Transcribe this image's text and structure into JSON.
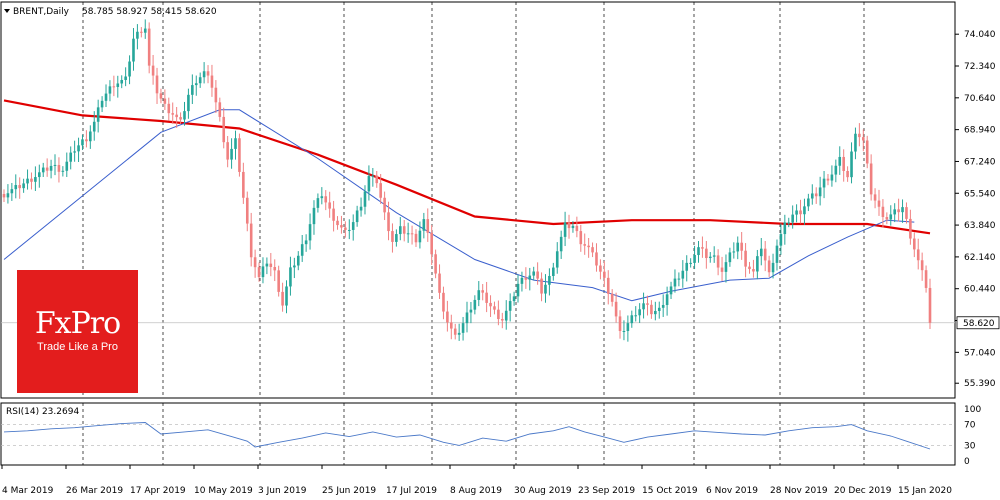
{
  "header": {
    "symbol": "BRENT,Daily",
    "ohlc": "58.785 58.927 58.415 58.620"
  },
  "logo": {
    "brand": "FxPro",
    "tagline": "Trade Like a Pro"
  },
  "rsi_header": "RSI(14) 23.2694",
  "last_price_label": "58.620",
  "colors": {
    "bull": "#26a69a",
    "bear": "#f08080",
    "ma200": "#e00000",
    "ma50": "#3a5fcd",
    "rsi": "#4a78c8",
    "logo": "#e31d1d"
  },
  "chart_data": [
    {
      "type": "candlestick",
      "title": "BRENT,Daily",
      "x_tick_labels": [
        "4 Mar 2019",
        "26 Mar 2019",
        "17 Apr 2019",
        "10 May 2019",
        "3 Jun 2019",
        "25 Jun 2019",
        "17 Jul 2019",
        "8 Aug 2019",
        "30 Aug 2019",
        "23 Sep 2019",
        "15 Oct 2019",
        "6 Nov 2019",
        "28 Nov 2019",
        "20 Dec 2019",
        "15 Jan 2020"
      ],
      "y_tick_labels": [
        "74.040",
        "72.340",
        "70.640",
        "68.940",
        "67.240",
        "65.540",
        "63.840",
        "62.140",
        "60.440",
        "58.740",
        "57.040",
        "55.390"
      ],
      "ylim": [
        54.6,
        75.6
      ],
      "close_series": [
        {
          "x": 0,
          "y": 65.5
        },
        {
          "x": 3,
          "y": 65.8
        },
        {
          "x": 6,
          "y": 66.2
        },
        {
          "x": 9,
          "y": 66.6
        },
        {
          "x": 12,
          "y": 67.0
        },
        {
          "x": 15,
          "y": 66.8
        },
        {
          "x": 18,
          "y": 67.9
        },
        {
          "x": 21,
          "y": 68.5
        },
        {
          "x": 23,
          "y": 69.3
        },
        {
          "x": 25,
          "y": 70.6
        },
        {
          "x": 28,
          "y": 71.4
        },
        {
          "x": 31,
          "y": 71.6
        },
        {
          "x": 33,
          "y": 73.8
        },
        {
          "x": 35,
          "y": 74.3
        },
        {
          "x": 36,
          "y": 74.4
        },
        {
          "x": 37,
          "y": 72.3
        },
        {
          "x": 39,
          "y": 71.0
        },
        {
          "x": 41,
          "y": 70.2
        },
        {
          "x": 43,
          "y": 69.8
        },
        {
          "x": 45,
          "y": 69.3
        },
        {
          "x": 47,
          "y": 70.8
        },
        {
          "x": 49,
          "y": 71.6
        },
        {
          "x": 51,
          "y": 72.0
        },
        {
          "x": 53,
          "y": 71.3
        },
        {
          "x": 55,
          "y": 69.5
        },
        {
          "x": 57,
          "y": 67.4
        },
        {
          "x": 59,
          "y": 68.3
        },
        {
          "x": 61,
          "y": 65.3
        },
        {
          "x": 63,
          "y": 62.3
        },
        {
          "x": 65,
          "y": 61.0
        },
        {
          "x": 67,
          "y": 61.9
        },
        {
          "x": 69,
          "y": 61.3
        },
        {
          "x": 71,
          "y": 59.6
        },
        {
          "x": 73,
          "y": 61.4
        },
        {
          "x": 75,
          "y": 62.2
        },
        {
          "x": 77,
          "y": 63.2
        },
        {
          "x": 79,
          "y": 64.7
        },
        {
          "x": 81,
          "y": 65.5
        },
        {
          "x": 83,
          "y": 64.6
        },
        {
          "x": 85,
          "y": 63.9
        },
        {
          "x": 87,
          "y": 63.4
        },
        {
          "x": 89,
          "y": 64.0
        },
        {
          "x": 91,
          "y": 65.0
        },
        {
          "x": 93,
          "y": 66.4
        },
        {
          "x": 95,
          "y": 66.2
        },
        {
          "x": 97,
          "y": 64.4
        },
        {
          "x": 99,
          "y": 63.0
        },
        {
          "x": 101,
          "y": 63.6
        },
        {
          "x": 103,
          "y": 63.4
        },
        {
          "x": 105,
          "y": 63.1
        },
        {
          "x": 107,
          "y": 64.1
        },
        {
          "x": 109,
          "y": 62.4
        },
        {
          "x": 111,
          "y": 60.1
        },
        {
          "x": 113,
          "y": 58.7
        },
        {
          "x": 115,
          "y": 57.8
        },
        {
          "x": 117,
          "y": 58.6
        },
        {
          "x": 119,
          "y": 59.5
        },
        {
          "x": 121,
          "y": 60.3
        },
        {
          "x": 123,
          "y": 59.8
        },
        {
          "x": 125,
          "y": 59.2
        },
        {
          "x": 127,
          "y": 58.8
        },
        {
          "x": 129,
          "y": 59.6
        },
        {
          "x": 131,
          "y": 60.7
        },
        {
          "x": 133,
          "y": 61.1
        },
        {
          "x": 135,
          "y": 61.3
        },
        {
          "x": 137,
          "y": 60.3
        },
        {
          "x": 139,
          "y": 61.0
        },
        {
          "x": 141,
          "y": 62.5
        },
        {
          "x": 143,
          "y": 63.8
        },
        {
          "x": 145,
          "y": 63.8
        },
        {
          "x": 147,
          "y": 63.0
        },
        {
          "x": 149,
          "y": 62.6
        },
        {
          "x": 151,
          "y": 61.8
        },
        {
          "x": 153,
          "y": 60.9
        },
        {
          "x": 155,
          "y": 59.8
        },
        {
          "x": 157,
          "y": 58.0
        },
        {
          "x": 159,
          "y": 58.6
        },
        {
          "x": 161,
          "y": 59.2
        },
        {
          "x": 163,
          "y": 59.6
        },
        {
          "x": 165,
          "y": 59.2
        },
        {
          "x": 167,
          "y": 59.3
        },
        {
          "x": 169,
          "y": 60.2
        },
        {
          "x": 171,
          "y": 60.8
        },
        {
          "x": 173,
          "y": 61.4
        },
        {
          "x": 175,
          "y": 62.0
        },
        {
          "x": 177,
          "y": 62.6
        },
        {
          "x": 179,
          "y": 62.2
        },
        {
          "x": 181,
          "y": 62.1
        },
        {
          "x": 183,
          "y": 61.4
        },
        {
          "x": 185,
          "y": 62.2
        },
        {
          "x": 187,
          "y": 62.9
        },
        {
          "x": 189,
          "y": 61.8
        },
        {
          "x": 191,
          "y": 61.3
        },
        {
          "x": 193,
          "y": 62.7
        },
        {
          "x": 195,
          "y": 61.2
        },
        {
          "x": 197,
          "y": 62.8
        },
        {
          "x": 199,
          "y": 63.8
        },
        {
          "x": 201,
          "y": 64.4
        },
        {
          "x": 203,
          "y": 64.6
        },
        {
          "x": 205,
          "y": 65.2
        },
        {
          "x": 207,
          "y": 65.5
        },
        {
          "x": 209,
          "y": 66.2
        },
        {
          "x": 211,
          "y": 66.6
        },
        {
          "x": 213,
          "y": 67.3
        },
        {
          "x": 215,
          "y": 66.4
        },
        {
          "x": 217,
          "y": 68.9
        },
        {
          "x": 219,
          "y": 68.3
        },
        {
          "x": 221,
          "y": 65.6
        },
        {
          "x": 223,
          "y": 64.7
        },
        {
          "x": 225,
          "y": 64.2
        },
        {
          "x": 227,
          "y": 64.5
        },
        {
          "x": 229,
          "y": 64.8
        },
        {
          "x": 231,
          "y": 63.3
        },
        {
          "x": 233,
          "y": 61.9
        },
        {
          "x": 235,
          "y": 60.6
        },
        {
          "x": 236,
          "y": 58.62
        }
      ],
      "ma200": [
        {
          "x": 0,
          "y": 70.5
        },
        {
          "x": 20,
          "y": 69.7
        },
        {
          "x": 40,
          "y": 69.4
        },
        {
          "x": 60,
          "y": 69.0
        },
        {
          "x": 80,
          "y": 67.6
        },
        {
          "x": 100,
          "y": 66.0
        },
        {
          "x": 120,
          "y": 64.3
        },
        {
          "x": 140,
          "y": 63.9
        },
        {
          "x": 160,
          "y": 64.1
        },
        {
          "x": 180,
          "y": 64.1
        },
        {
          "x": 200,
          "y": 63.9
        },
        {
          "x": 220,
          "y": 63.9
        },
        {
          "x": 236,
          "y": 63.4
        }
      ],
      "ma50": [
        {
          "x": 0,
          "y": 62.0
        },
        {
          "x": 20,
          "y": 65.4
        },
        {
          "x": 40,
          "y": 68.8
        },
        {
          "x": 55,
          "y": 70.0
        },
        {
          "x": 60,
          "y": 70.0
        },
        {
          "x": 80,
          "y": 67.4
        },
        {
          "x": 100,
          "y": 64.5
        },
        {
          "x": 120,
          "y": 62.0
        },
        {
          "x": 135,
          "y": 60.9
        },
        {
          "x": 150,
          "y": 60.5
        },
        {
          "x": 160,
          "y": 59.8
        },
        {
          "x": 170,
          "y": 60.3
        },
        {
          "x": 185,
          "y": 60.9
        },
        {
          "x": 195,
          "y": 61.0
        },
        {
          "x": 205,
          "y": 62.2
        },
        {
          "x": 215,
          "y": 63.2
        },
        {
          "x": 225,
          "y": 64.1
        },
        {
          "x": 232,
          "y": 64.0
        }
      ]
    },
    {
      "type": "line",
      "title": "RSI(14) 23.2694",
      "y_tick_labels": [
        "100",
        "70",
        "30",
        "0"
      ],
      "levels": [
        70,
        30
      ],
      "ylim": [
        0,
        100
      ],
      "values": [
        {
          "x": 0,
          "y": 56
        },
        {
          "x": 6,
          "y": 58
        },
        {
          "x": 12,
          "y": 62
        },
        {
          "x": 18,
          "y": 64
        },
        {
          "x": 24,
          "y": 68
        },
        {
          "x": 30,
          "y": 72
        },
        {
          "x": 36,
          "y": 74
        },
        {
          "x": 40,
          "y": 52
        },
        {
          "x": 46,
          "y": 56
        },
        {
          "x": 52,
          "y": 60
        },
        {
          "x": 58,
          "y": 47
        },
        {
          "x": 62,
          "y": 38
        },
        {
          "x": 64,
          "y": 27
        },
        {
          "x": 70,
          "y": 36
        },
        {
          "x": 76,
          "y": 44
        },
        {
          "x": 82,
          "y": 54
        },
        {
          "x": 88,
          "y": 47
        },
        {
          "x": 94,
          "y": 56
        },
        {
          "x": 100,
          "y": 46
        },
        {
          "x": 106,
          "y": 50
        },
        {
          "x": 112,
          "y": 36
        },
        {
          "x": 116,
          "y": 30
        },
        {
          "x": 122,
          "y": 44
        },
        {
          "x": 128,
          "y": 38
        },
        {
          "x": 134,
          "y": 52
        },
        {
          "x": 140,
          "y": 58
        },
        {
          "x": 144,
          "y": 66
        },
        {
          "x": 148,
          "y": 56
        },
        {
          "x": 154,
          "y": 44
        },
        {
          "x": 158,
          "y": 36
        },
        {
          "x": 164,
          "y": 46
        },
        {
          "x": 170,
          "y": 52
        },
        {
          "x": 176,
          "y": 58
        },
        {
          "x": 182,
          "y": 55
        },
        {
          "x": 188,
          "y": 52
        },
        {
          "x": 194,
          "y": 50
        },
        {
          "x": 200,
          "y": 58
        },
        {
          "x": 206,
          "y": 64
        },
        {
          "x": 212,
          "y": 66
        },
        {
          "x": 216,
          "y": 70
        },
        {
          "x": 220,
          "y": 58
        },
        {
          "x": 226,
          "y": 48
        },
        {
          "x": 230,
          "y": 38
        },
        {
          "x": 236,
          "y": 23
        }
      ]
    }
  ]
}
